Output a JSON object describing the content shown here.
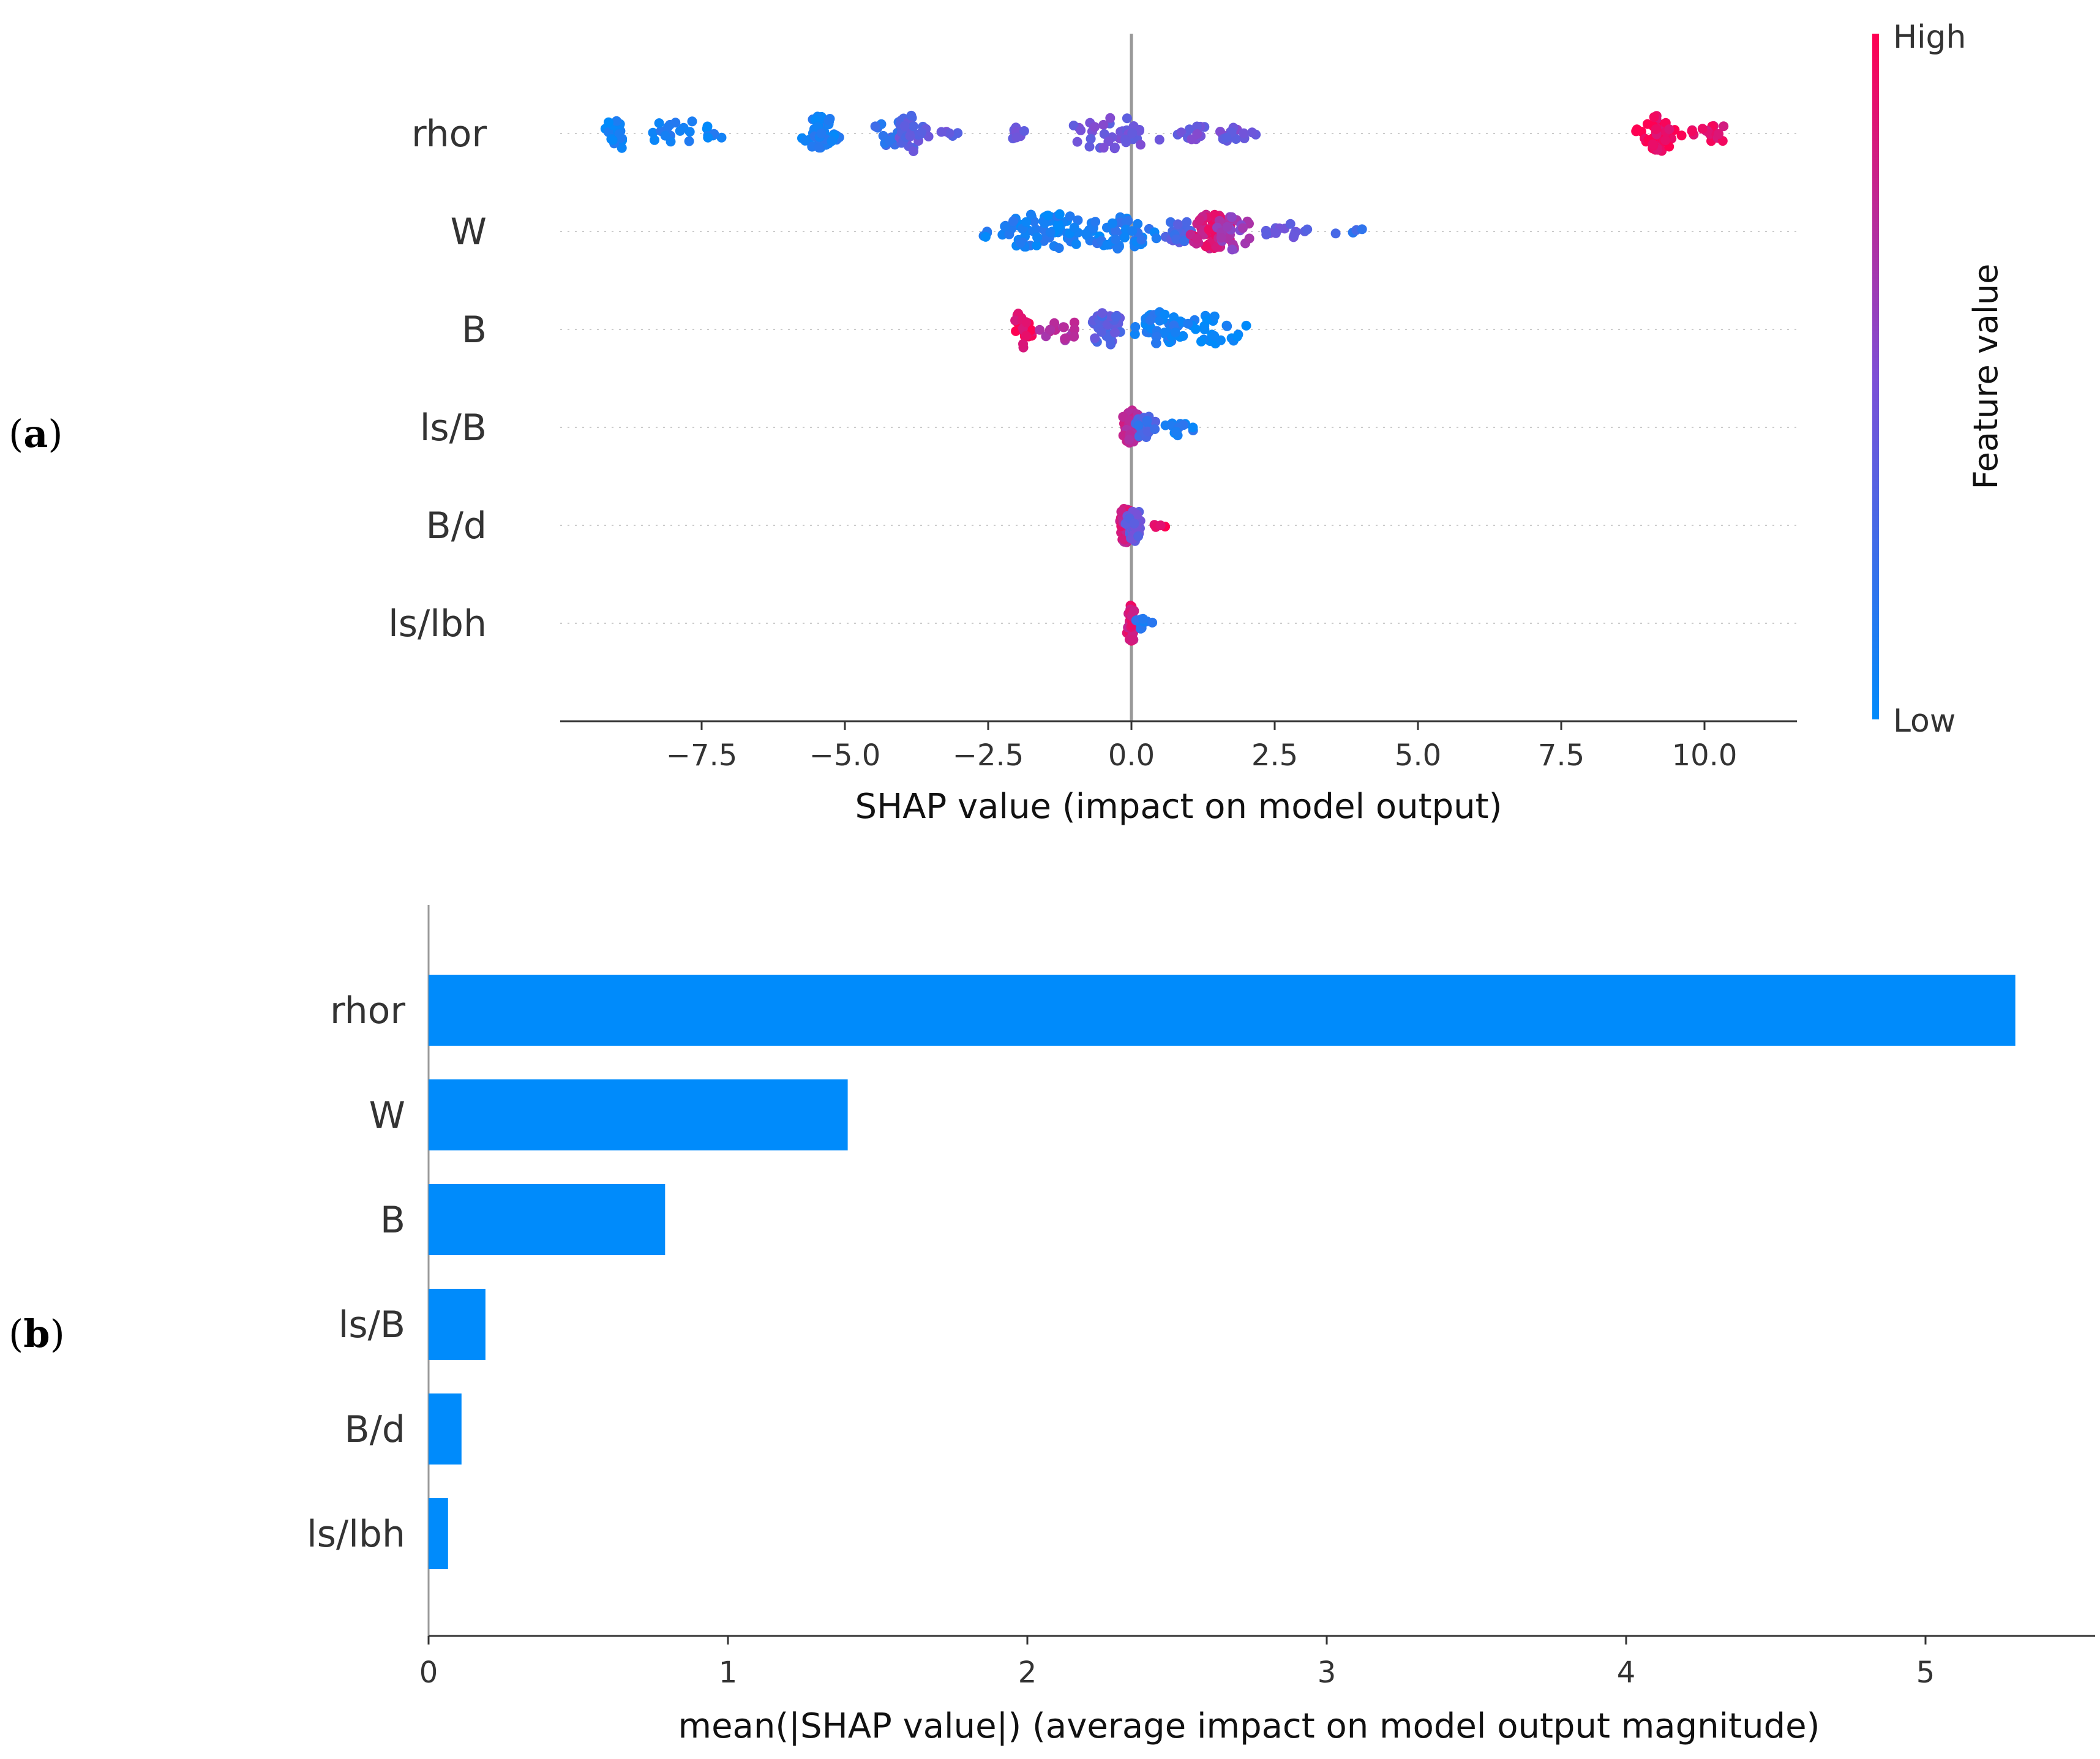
{
  "panels": {
    "a": "a",
    "b": "b"
  },
  "colors": {
    "high": "#ff0052",
    "mid": "#7d4fd6",
    "low": "#008bfb",
    "bar": "#008bfb"
  },
  "chart_data": [
    {
      "type": "scatter",
      "subtype": "shap-beeswarm",
      "panel": "a",
      "title": "",
      "xlabel": "SHAP value (impact on model output)",
      "ylabel": "",
      "xlim": [
        -9.8,
        11.8
      ],
      "xticks": [
        -7.5,
        -5.0,
        -2.5,
        0.0,
        2.5,
        5.0,
        7.5,
        10.0
      ],
      "xtick_labels": [
        "−7.5",
        "−5.0",
        "−2.5",
        "0.0",
        "2.5",
        "5.0",
        "7.5",
        "10.0"
      ],
      "features": [
        "rhor",
        "W",
        "B",
        "ls/B",
        "B/d",
        "ls/lbh"
      ],
      "colorbar": {
        "title": "Feature value",
        "high_label": "High",
        "low_label": "Low"
      },
      "clusters": [
        {
          "feature": "rhor",
          "groups": [
            {
              "center": -9.0,
              "spread": 0.22,
              "n": 28,
              "fv": 0.05
            },
            {
              "center": -7.9,
              "spread": 0.9,
              "n": 22,
              "fv": 0.08
            },
            {
              "center": -5.4,
              "spread": 0.3,
              "n": 48,
              "fv": 0.1
            },
            {
              "center": -4.2,
              "spread": 0.45,
              "n": 20,
              "fv": 0.2
            },
            {
              "center": -3.85,
              "spread": 0.25,
              "n": 36,
              "fv": 0.38
            },
            {
              "center": -3.2,
              "spread": 0.2,
              "n": 5,
              "fv": 0.4
            },
            {
              "center": -2.0,
              "spread": 0.25,
              "n": 10,
              "fv": 0.42
            },
            {
              "center": -0.3,
              "spread": 0.8,
              "n": 36,
              "fv": 0.45
            },
            {
              "center": 1.2,
              "spread": 0.45,
              "n": 12,
              "fv": 0.46
            },
            {
              "center": 1.8,
              "spread": 0.3,
              "n": 14,
              "fv": 0.44
            },
            {
              "center": 9.2,
              "spread": 0.3,
              "n": 55,
              "fv": 0.95
            },
            {
              "center": 10.1,
              "spread": 0.4,
              "n": 16,
              "fv": 0.9
            }
          ]
        },
        {
          "feature": "W",
          "groups": [
            {
              "center": -1.5,
              "spread": 1.0,
              "n": 80,
              "fv": 0.08
            },
            {
              "center": -0.2,
              "spread": 0.6,
              "n": 40,
              "fv": 0.12
            },
            {
              "center": 0.8,
              "spread": 0.3,
              "n": 20,
              "fv": 0.3
            },
            {
              "center": 1.4,
              "spread": 0.4,
              "n": 70,
              "fv": 0.85
            },
            {
              "center": 1.8,
              "spread": 0.35,
              "n": 30,
              "fv": 0.6
            },
            {
              "center": 2.7,
              "spread": 0.4,
              "n": 14,
              "fv": 0.4
            },
            {
              "center": 3.9,
              "spread": 0.3,
              "n": 5,
              "fv": 0.2
            }
          ]
        },
        {
          "feature": "B",
          "groups": [
            {
              "center": -1.9,
              "spread": 0.15,
              "n": 30,
              "fv": 0.92
            },
            {
              "center": -1.2,
              "spread": 0.4,
              "n": 18,
              "fv": 0.7
            },
            {
              "center": -0.4,
              "spread": 0.3,
              "n": 40,
              "fv": 0.35
            },
            {
              "center": 0.5,
              "spread": 0.35,
              "n": 50,
              "fv": 0.1
            },
            {
              "center": 1.5,
              "spread": 0.55,
              "n": 26,
              "fv": 0.05
            }
          ]
        },
        {
          "feature": "ls/B",
          "groups": [
            {
              "center": 0.0,
              "spread": 0.15,
              "n": 50,
              "fv": 0.75
            },
            {
              "center": 0.25,
              "spread": 0.2,
              "n": 20,
              "fv": 0.25
            },
            {
              "center": 0.85,
              "spread": 0.25,
              "n": 14,
              "fv": 0.1
            }
          ]
        },
        {
          "feature": "B/d",
          "groups": [
            {
              "center": -0.1,
              "spread": 0.12,
              "n": 40,
              "fv": 0.8
            },
            {
              "center": 0.05,
              "spread": 0.12,
              "n": 40,
              "fv": 0.4
            },
            {
              "center": 0.5,
              "spread": 0.1,
              "n": 4,
              "fv": 0.95
            }
          ]
        },
        {
          "feature": "ls/lbh",
          "groups": [
            {
              "center": 0.0,
              "spread": 0.06,
              "n": 50,
              "fv": 0.85
            },
            {
              "center": 0.2,
              "spread": 0.12,
              "n": 12,
              "fv": 0.15
            }
          ]
        }
      ]
    },
    {
      "type": "bar",
      "orientation": "horizontal",
      "panel": "b",
      "title": "",
      "categories": [
        "rhor",
        "W",
        "B",
        "ls/B",
        "B/d",
        "ls/lbh"
      ],
      "values": [
        5.3,
        1.4,
        0.79,
        0.19,
        0.11,
        0.065
      ],
      "xlabel": "mean(|SHAP value|) (average impact on model output magnitude)",
      "ylabel": "",
      "xlim": [
        0,
        5.55
      ],
      "xticks": [
        0,
        1,
        2,
        3,
        4,
        5
      ],
      "xtick_labels": [
        "0",
        "1",
        "2",
        "3",
        "4",
        "5"
      ]
    }
  ]
}
